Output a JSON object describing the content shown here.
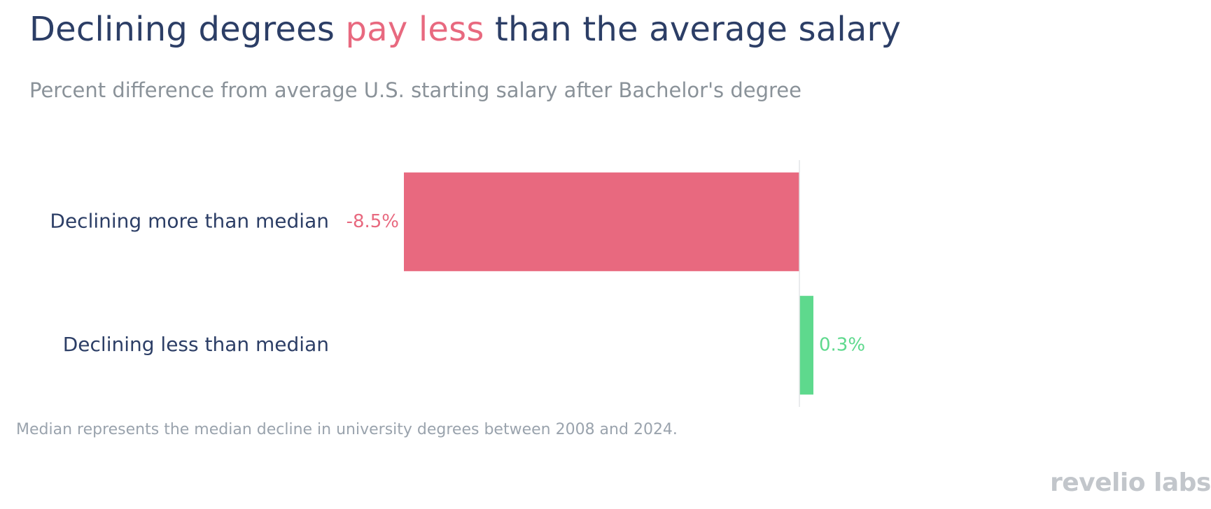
{
  "chart_data": {
    "type": "bar",
    "orientation": "horizontal",
    "title_parts": [
      {
        "text": "Declining degrees ",
        "highlight": false
      },
      {
        "text": "pay less",
        "highlight": true
      },
      {
        "text": " than the average salary",
        "highlight": false
      }
    ],
    "subtitle": "Percent difference from average U.S. starting salary after Bachelor's degree",
    "categories": [
      "Declining more than median",
      "Declining less than median"
    ],
    "values": [
      -8.5,
      0.3
    ],
    "data_labels": [
      "-8.5%",
      "0.3%"
    ],
    "colors": [
      "#e8697f",
      "#5ed98d"
    ],
    "xlim": [
      -8.5,
      2.0
    ],
    "grid": false,
    "zero_line": true,
    "footnote": "Median represents the median decline in university degrees between 2008 and 2024."
  },
  "colors": {
    "title": "#2c3e66",
    "highlight": "#e8697f",
    "subtitle": "#8a9299",
    "footnote": "#9aa3ad",
    "logo": "#c2c6cb"
  },
  "logo_text": "revelio labs"
}
